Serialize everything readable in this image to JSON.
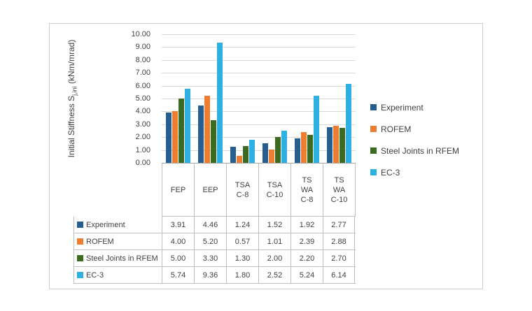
{
  "chart_data": {
    "type": "bar",
    "title": "",
    "y_axis": {
      "label_prefix": "Initial Stiffness S",
      "label_sub": "j,ini",
      "label_suffix": " (kNm/mrad)",
      "min": 0.0,
      "max": 10.0,
      "tick_step": 1.0,
      "tick_labels": [
        "10.00",
        "9.00",
        "8.00",
        "7.00",
        "6.00",
        "5.00",
        "4.00",
        "3.00",
        "2.00",
        "1.00",
        "0.00"
      ]
    },
    "categories": [
      "FEP",
      "EEP",
      "TSA C-8",
      "TSA C-10",
      "TS WA C-8",
      "TS WA C-10"
    ],
    "category_display_lines": [
      [
        "FEP"
      ],
      [
        "EEP"
      ],
      [
        "TSA",
        "C-8"
      ],
      [
        "TSA",
        "C-10"
      ],
      [
        "TS",
        "WA",
        "C-8"
      ],
      [
        "TS",
        "WA",
        "C-10"
      ]
    ],
    "series": [
      {
        "name": "Experiment",
        "color": "#255E91",
        "values": [
          3.91,
          4.46,
          1.24,
          1.52,
          1.92,
          2.77
        ]
      },
      {
        "name": "ROFEM",
        "color": "#ED7D31",
        "values": [
          4.0,
          5.2,
          0.57,
          1.01,
          2.39,
          2.88
        ]
      },
      {
        "name": "Steel Joints in RFEM",
        "color": "#3A6B1F",
        "values": [
          5.0,
          3.3,
          1.3,
          2.0,
          2.2,
          2.7
        ]
      },
      {
        "name": "EC-3",
        "color": "#2EB1E2",
        "values": [
          5.74,
          9.36,
          1.8,
          2.52,
          5.24,
          6.14
        ]
      }
    ],
    "legend_position": "right",
    "gridlines": true,
    "data_table_shown": true
  }
}
